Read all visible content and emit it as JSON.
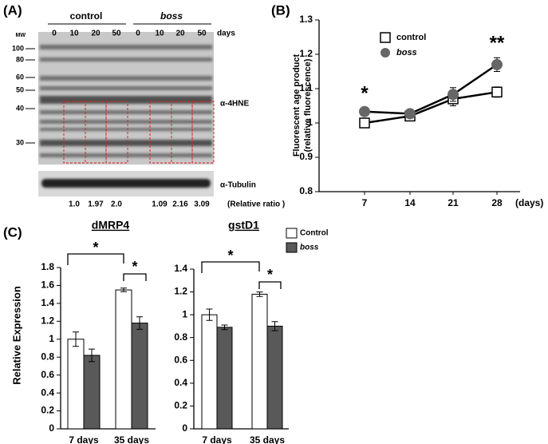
{
  "panel_labels": [
    "(A)",
    "(B)",
    "(C)"
  ],
  "blot": {
    "groups": [
      "control",
      "boss"
    ],
    "lanes": [
      "0",
      "10",
      "20",
      "50",
      "0",
      "10",
      "20",
      "50"
    ],
    "lanes_unit": "days",
    "mw_title": "MW",
    "mw": [
      "100",
      "80",
      "60",
      "50",
      "40",
      "30"
    ],
    "antibodies": [
      "α-4HNE",
      "α-Tubulin"
    ],
    "ratios": [
      "1.0",
      "1.97",
      "2.0",
      "1.09",
      "2.16",
      "3.09"
    ],
    "ratio_label": "(Relative ratio )"
  },
  "chart_data": [
    {
      "type": "line",
      "categories": [
        "7",
        "14",
        "21",
        "28"
      ],
      "xlabel": "(days)",
      "ylabel": [
        "Fluorescent age product",
        "(relative fluorescence)"
      ],
      "ylim": [
        0.8,
        1.3
      ],
      "yticks": [
        0.8,
        0.9,
        1,
        1.1,
        1.2,
        1.3
      ],
      "series": [
        {
          "name": "control",
          "color": "#ffffff",
          "marker": "square",
          "values": [
            1.0,
            1.02,
            1.07,
            1.09
          ],
          "errors": [
            0.01,
            0.01,
            0.02,
            0.015
          ]
        },
        {
          "name": "boss",
          "color": "#666666",
          "marker": "circle",
          "values": [
            1.033,
            1.027,
            1.083,
            1.17
          ],
          "errors": [
            0.005,
            0.012,
            0.02,
            0.02
          ]
        }
      ],
      "annotations": [
        "*",
        "**"
      ]
    },
    {
      "type": "bar",
      "title": "dMRP4",
      "categories": [
        "7 days",
        "35 days"
      ],
      "ylabel": "Relative Expression",
      "ylim": [
        0,
        1.8
      ],
      "yticks": [
        0,
        0.2,
        0.4,
        0.6,
        0.8,
        1,
        1.2,
        1.4,
        1.6,
        1.8
      ],
      "series": [
        {
          "name": "Control",
          "color": "#ffffff",
          "values": [
            1.0,
            1.55
          ],
          "errors": [
            0.08,
            0.02
          ]
        },
        {
          "name": "boss",
          "color": "#595959",
          "values": [
            0.82,
            1.18
          ],
          "errors": [
            0.07,
            0.07
          ]
        }
      ],
      "annotations": [
        "*",
        "*"
      ]
    },
    {
      "type": "bar",
      "title": "gstD1",
      "categories": [
        "7 days",
        "35 days"
      ],
      "ylim": [
        0,
        1.4
      ],
      "yticks": [
        0,
        0.2,
        0.4,
        0.6,
        0.8,
        1,
        1.2,
        1.4
      ],
      "series": [
        {
          "color": "#ffffff",
          "values": [
            1.0,
            1.18
          ],
          "errors": [
            0.05,
            0.02
          ]
        },
        {
          "color": "#595959",
          "values": [
            0.89,
            0.9
          ],
          "errors": [
            0.02,
            0.04
          ]
        }
      ],
      "annotations": [
        "*",
        "*"
      ]
    }
  ]
}
